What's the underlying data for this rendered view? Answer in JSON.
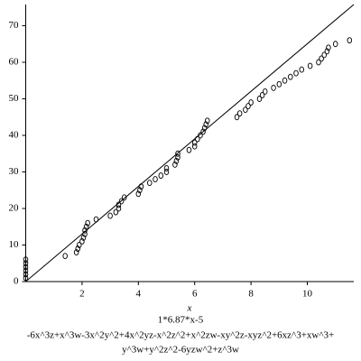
{
  "chart_data": {
    "type": "scatter",
    "x": [
      0,
      0,
      0,
      0,
      0,
      0,
      1.4,
      1.8,
      1.85,
      1.9,
      2.0,
      2.05,
      2.1,
      2.1,
      2.15,
      2.2,
      2.5,
      3.0,
      3.2,
      3.3,
      3.3,
      3.4,
      3.5,
      4.0,
      4.05,
      4.1,
      4.4,
      4.6,
      4.8,
      5.0,
      5.0,
      5.3,
      5.35,
      5.4,
      5.4,
      5.8,
      6.0,
      6.0,
      6.1,
      6.2,
      6.3,
      6.35,
      6.4,
      6.45,
      7.5,
      7.6,
      7.8,
      7.9,
      8.0,
      8.3,
      8.4,
      8.5,
      8.8,
      9.0,
      9.2,
      9.4,
      9.6,
      9.8,
      10.1,
      10.4,
      10.5,
      10.6,
      10.7,
      10.75,
      11.0,
      11.5
    ],
    "y": [
      1,
      2,
      3,
      4,
      5,
      6,
      7,
      8,
      9,
      10,
      11,
      12,
      13,
      14,
      15,
      16,
      17,
      18,
      19,
      20,
      21,
      22,
      23,
      24,
      25,
      26,
      27,
      28,
      29,
      30,
      31,
      32,
      33,
      34,
      35,
      36,
      37,
      38,
      39,
      40,
      41,
      42,
      43,
      44,
      45,
      46,
      47,
      48,
      49,
      50,
      51,
      52,
      53,
      54,
      55,
      56,
      57,
      58,
      59,
      60,
      61,
      62,
      63,
      64,
      65,
      66
    ],
    "line": {
      "x": [
        0,
        11.65
      ],
      "y": [
        0,
        75.8
      ]
    },
    "color": "#000000",
    "xlim": [
      0,
      11.65
    ],
    "ylim": [
      0,
      75.8
    ],
    "xticks": [
      2,
      4,
      6,
      8,
      10
    ],
    "yticks": [
      0,
      10,
      20,
      30,
      40,
      50,
      60,
      70
    ],
    "xlabel": "x",
    "caption": [
      "1*6.87*x-5",
      "-6x^3z+x^3w-3x^2y^2+4x^2yz-x^2z^2+x^2zw-xy^2z-xyz^2+6xz^3+xw^3+",
      "y^3w+y^2z^2-6yzw^2+z^3w"
    ]
  }
}
